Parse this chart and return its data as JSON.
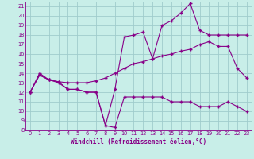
{
  "xlabel": "Windchill (Refroidissement éolien,°C)",
  "background_color": "#c8eee8",
  "line_color": "#880088",
  "grid_color": "#a0cccc",
  "xlim": [
    0,
    23
  ],
  "ylim": [
    8,
    21.5
  ],
  "yticks": [
    8,
    9,
    10,
    11,
    12,
    13,
    14,
    15,
    16,
    17,
    18,
    19,
    20,
    21
  ],
  "xticks": [
    0,
    1,
    2,
    3,
    4,
    5,
    6,
    7,
    8,
    9,
    10,
    11,
    12,
    13,
    14,
    15,
    16,
    17,
    18,
    19,
    20,
    21,
    22,
    23
  ],
  "line1_x": [
    0,
    1,
    2,
    3,
    4,
    5,
    6,
    7,
    8,
    9,
    10,
    11,
    12,
    13,
    14,
    15,
    16,
    17,
    18,
    19,
    20,
    21,
    22,
    23
  ],
  "line1_y": [
    12,
    14,
    13.3,
    13,
    12.3,
    12.3,
    12,
    12,
    8.5,
    8.3,
    11.5,
    11.5,
    11.5,
    11.5,
    11.5,
    11,
    11,
    11,
    10.5,
    10.5,
    10.5,
    11,
    10.5,
    10
  ],
  "line2_x": [
    0,
    1,
    2,
    3,
    4,
    5,
    6,
    7,
    8,
    9,
    10,
    11,
    12,
    13,
    14,
    15,
    16,
    17,
    18,
    19,
    20,
    21,
    22,
    23
  ],
  "line2_y": [
    12,
    13.8,
    13.3,
    13.1,
    13,
    13,
    13,
    13.2,
    13.5,
    14,
    14.5,
    15,
    15.2,
    15.5,
    15.8,
    16,
    16.3,
    16.5,
    17,
    17.3,
    16.8,
    16.8,
    14.5,
    13.5
  ],
  "line3_x": [
    0,
    1,
    2,
    3,
    4,
    5,
    6,
    7,
    8,
    9,
    10,
    11,
    12,
    13,
    14,
    15,
    16,
    17,
    18,
    19,
    20,
    21,
    22,
    23
  ],
  "line3_y": [
    12,
    13.8,
    13.3,
    13.1,
    12.3,
    12.3,
    12,
    12,
    8.5,
    12.3,
    17.8,
    18,
    18.3,
    15.5,
    19,
    19.5,
    20.3,
    21.3,
    18.5,
    18,
    18,
    18,
    18,
    18
  ]
}
